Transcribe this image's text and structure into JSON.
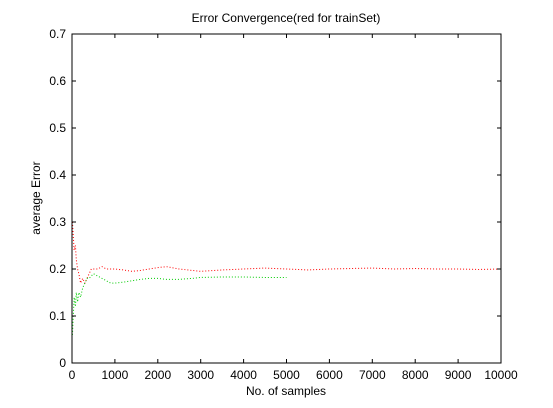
{
  "chart_data": {
    "type": "line",
    "title": "Error Convergence(red for trainSet)",
    "xlabel": "No. of samples",
    "ylabel": "average Error",
    "xlim": [
      0,
      10000
    ],
    "ylim": [
      0,
      0.7
    ],
    "xticks": [
      0,
      1000,
      2000,
      3000,
      4000,
      5000,
      6000,
      7000,
      8000,
      9000,
      10000
    ],
    "yticks": [
      0,
      0.1,
      0.2,
      0.3,
      0.4,
      0.5,
      0.6,
      0.7
    ],
    "grid": false,
    "line_style": "dotted",
    "series": [
      {
        "color": "#ff0000",
        "x": [
          10,
          30,
          50,
          80,
          100,
          130,
          160,
          200,
          250,
          300,
          350,
          400,
          450,
          500,
          600,
          700,
          800,
          900,
          1000,
          1200,
          1400,
          1600,
          1800,
          2000,
          2200,
          2500,
          2800,
          3000,
          3500,
          4000,
          4500,
          5000,
          5500,
          6000,
          6500,
          7000,
          7500,
          8000,
          8500,
          9000,
          9500,
          10000
        ],
        "y": [
          0.3,
          0.27,
          0.24,
          0.25,
          0.22,
          0.2,
          0.19,
          0.17,
          0.18,
          0.17,
          0.18,
          0.19,
          0.2,
          0.2,
          0.2,
          0.205,
          0.2,
          0.2,
          0.2,
          0.198,
          0.195,
          0.197,
          0.2,
          0.203,
          0.205,
          0.2,
          0.197,
          0.195,
          0.198,
          0.2,
          0.202,
          0.2,
          0.198,
          0.2,
          0.201,
          0.202,
          0.2,
          0.201,
          0.2,
          0.2,
          0.199,
          0.2
        ]
      },
      {
        "color": "#00cc00",
        "x": [
          10,
          30,
          50,
          80,
          100,
          130,
          160,
          200,
          250,
          300,
          350,
          400,
          500,
          600,
          700,
          800,
          900,
          1000,
          1200,
          1400,
          1600,
          1800,
          2000,
          2200,
          2500,
          2800,
          3000,
          3500,
          4000,
          4500,
          5000
        ],
        "y": [
          0.06,
          0.1,
          0.14,
          0.12,
          0.15,
          0.13,
          0.15,
          0.14,
          0.16,
          0.17,
          0.18,
          0.18,
          0.19,
          0.185,
          0.18,
          0.175,
          0.17,
          0.17,
          0.172,
          0.175,
          0.178,
          0.18,
          0.18,
          0.178,
          0.178,
          0.18,
          0.182,
          0.183,
          0.183,
          0.182,
          0.182
        ]
      }
    ]
  }
}
